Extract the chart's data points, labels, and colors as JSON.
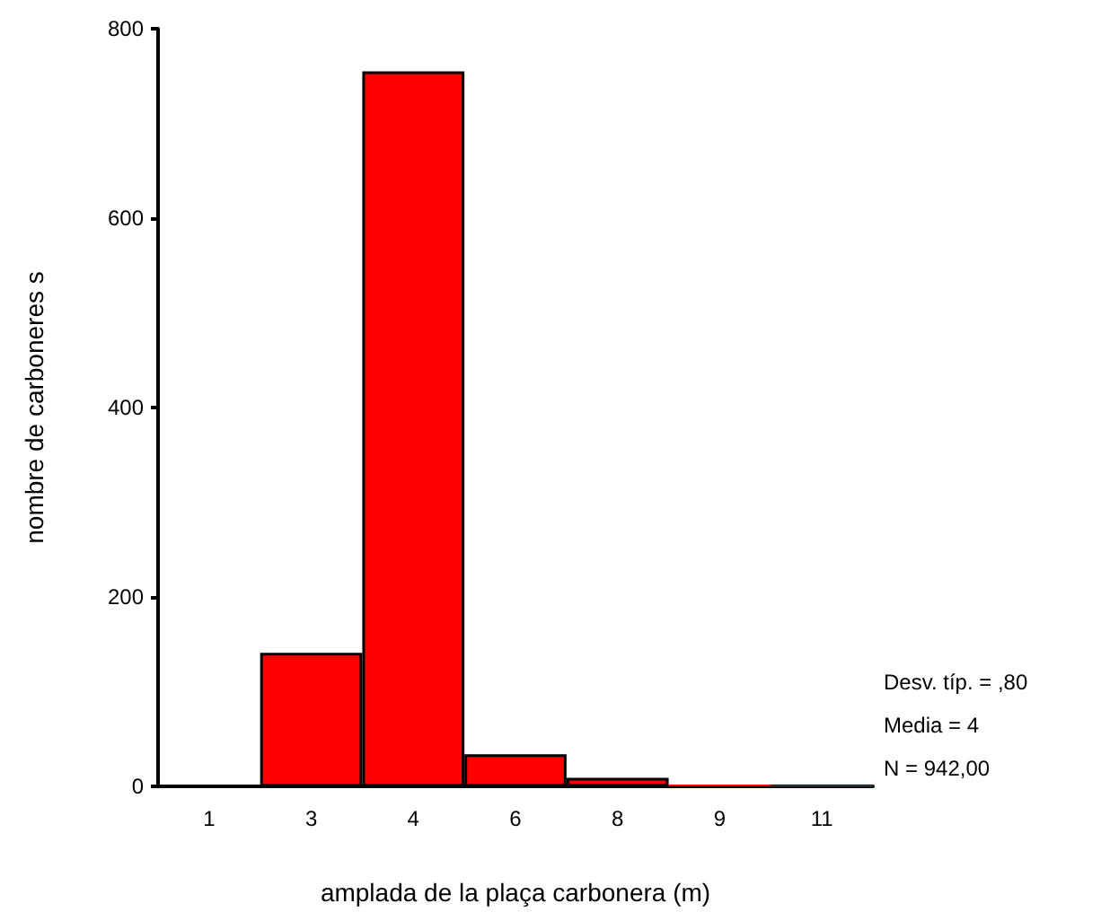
{
  "chart_data": {
    "type": "bar",
    "xlabel": "amplada de la plaça carbonera (m)",
    "ylabel": "nombre de carboneres s",
    "categories": [
      "1",
      "3",
      "4",
      "6",
      "8",
      "9",
      "11"
    ],
    "values": [
      0,
      141,
      755,
      34,
      9,
      2,
      1
    ],
    "color": "#ff0000",
    "ylim": [
      0,
      800
    ],
    "yticks": [
      0,
      200,
      400,
      600,
      800
    ],
    "grid": false,
    "annotations": [
      "Desv. típ. = ,80",
      "Media = 4",
      "N = 942,00"
    ]
  }
}
